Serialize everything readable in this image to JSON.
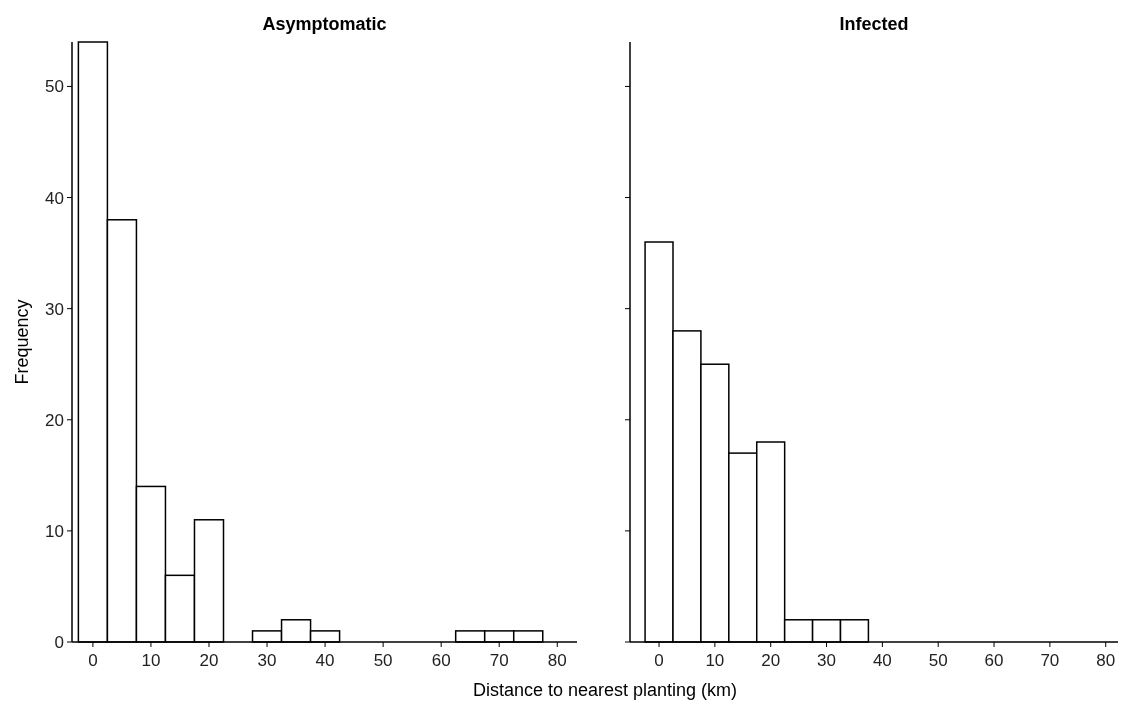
{
  "chart_data": [
    {
      "type": "histogram",
      "title": "Asymptomatic",
      "xlabel": "Distance to nearest planting (km)",
      "ylabel": "Frequency",
      "color": "#ffffff",
      "bins": [
        -2.5,
        2.5,
        7.5,
        12.5,
        17.5,
        22.5,
        27.5,
        32.5,
        37.5,
        42.5,
        47.5,
        52.5,
        57.5,
        62.5,
        67.5,
        72.5,
        77.5
      ],
      "values": [
        54,
        38,
        14,
        6,
        11,
        0,
        1,
        2,
        1,
        0,
        0,
        0,
        0,
        1,
        1,
        1
      ],
      "xlim": [
        -3.6,
        83.4
      ],
      "ylim": [
        0,
        54
      ],
      "xticks": [
        0,
        10,
        20,
        30,
        40,
        50,
        60,
        70,
        80
      ],
      "yticks": [
        0,
        10,
        20,
        30,
        40,
        50
      ],
      "grid": false
    },
    {
      "type": "histogram",
      "title": "Infected",
      "color": "#ffffff",
      "bins": [
        -2.5,
        2.5,
        7.5,
        12.5,
        17.5,
        22.5,
        27.5,
        32.5,
        37.5
      ],
      "values": [
        36,
        28,
        25,
        17,
        18,
        2,
        2,
        2
      ],
      "xlim": [
        -5.2,
        82.2
      ],
      "ylim": [
        0,
        54
      ],
      "xticks": [
        0,
        10,
        20,
        30,
        40,
        50,
        60,
        70,
        80
      ],
      "yticks": [
        0,
        10,
        20,
        30,
        40,
        50
      ],
      "tick_labels": "x",
      "grid": false
    }
  ]
}
